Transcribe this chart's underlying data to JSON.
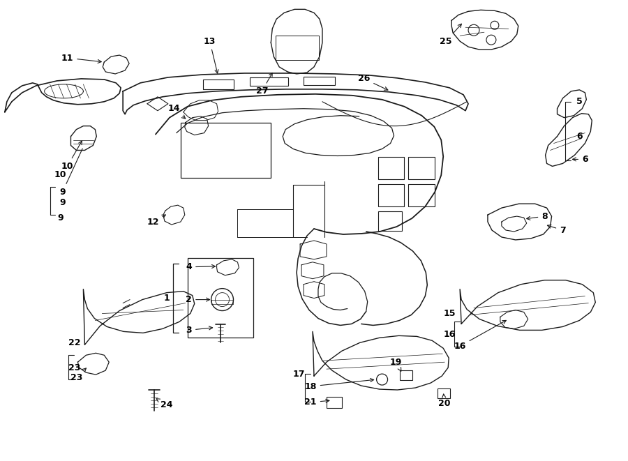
{
  "bg_color": "#ffffff",
  "line_color": "#1a1a1a",
  "text_color": "#000000",
  "fig_width": 9.0,
  "fig_height": 6.61,
  "dpi": 100,
  "label_fs": 9,
  "label_fw": "bold"
}
